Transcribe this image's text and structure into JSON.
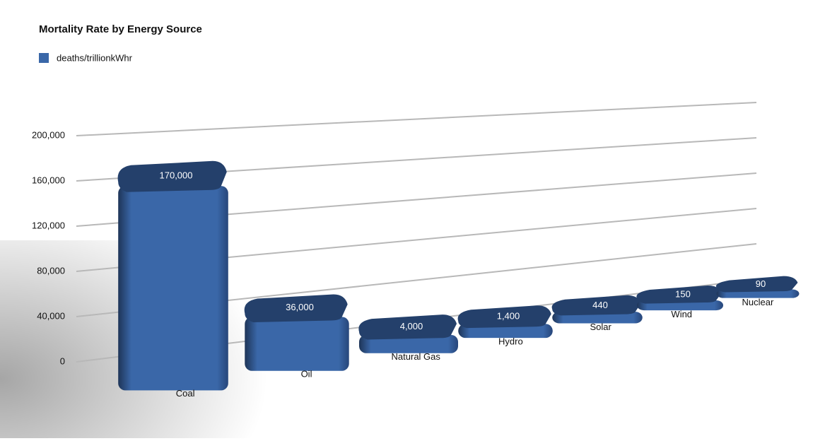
{
  "chart_data": {
    "type": "bar3d",
    "title": "Mortality Rate by Energy Source",
    "categories": [
      "Coal",
      "Oil",
      "Natural Gas",
      "Hydro",
      "Solar",
      "Wind",
      "Nuclear"
    ],
    "series": [
      {
        "name": "deaths/trillionkWhr",
        "color": "#3a67a8",
        "values": [
          170000,
          36000,
          4000,
          1400,
          440,
          150,
          90
        ],
        "value_labels": [
          "170,000",
          "36,000",
          "4,000",
          "1,400",
          "440",
          "150",
          "90"
        ]
      }
    ],
    "ylim": [
      0,
      200000
    ],
    "yticks": [
      {
        "value": 0,
        "label": "0"
      },
      {
        "value": 40000,
        "label": "40,000"
      },
      {
        "value": 80000,
        "label": "80,000"
      },
      {
        "value": 120000,
        "label": "120,000"
      },
      {
        "value": 160000,
        "label": "160,000"
      },
      {
        "value": 200000,
        "label": "200,000"
      }
    ],
    "grid": true
  }
}
